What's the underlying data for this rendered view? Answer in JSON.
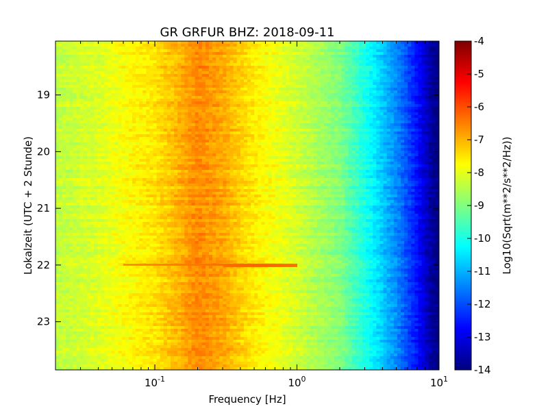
{
  "chart_data": {
    "type": "heatmap",
    "title": "GR GRFUR BHZ: 2018-09-11",
    "xlabel": "Frequency [Hz]",
    "ylabel": "Lokalzeit (UTC + 2 Stunde)",
    "xscale": "log",
    "xlim": [
      0.02,
      10
    ],
    "ylim": [
      18.05,
      23.85
    ],
    "y_inverted": true,
    "x_ticks": [
      {
        "value": 0.1,
        "base": "10",
        "exp": "-1"
      },
      {
        "value": 1,
        "base": "10",
        "exp": "0"
      },
      {
        "value": 10,
        "base": "10",
        "exp": "1"
      }
    ],
    "y_ticks": [
      "19",
      "20",
      "21",
      "22",
      "23"
    ],
    "colormap": "jet",
    "colorbar": {
      "label": "Log10(Sqrt(m**2/s**2/Hz))",
      "range": [
        -14,
        -4
      ],
      "ticks": [
        "-4",
        "-5",
        "-6",
        "-7",
        "-8",
        "-9",
        "-10",
        "-11",
        "-12",
        "-13",
        "-14"
      ]
    },
    "spectrum_profile": [
      {
        "freq": 0.02,
        "value": -8.4
      },
      {
        "freq": 0.04,
        "value": -8.1
      },
      {
        "freq": 0.06,
        "value": -7.8
      },
      {
        "freq": 0.1,
        "value": -7.5
      },
      {
        "freq": 0.15,
        "value": -7.0
      },
      {
        "freq": 0.2,
        "value": -6.6
      },
      {
        "freq": 0.3,
        "value": -6.9
      },
      {
        "freq": 0.5,
        "value": -7.6
      },
      {
        "freq": 1,
        "value": -8.2
      },
      {
        "freq": 2,
        "value": -9.0
      },
      {
        "freq": 3,
        "value": -10.0
      },
      {
        "freq": 5,
        "value": -11.4
      },
      {
        "freq": 7,
        "value": -12.6
      },
      {
        "freq": 9,
        "value": -13.8
      },
      {
        "freq": 10,
        "value": -14.0
      }
    ],
    "event": {
      "time": 22.0,
      "freq_range": [
        0.06,
        1.0
      ],
      "value": -6.2
    }
  }
}
